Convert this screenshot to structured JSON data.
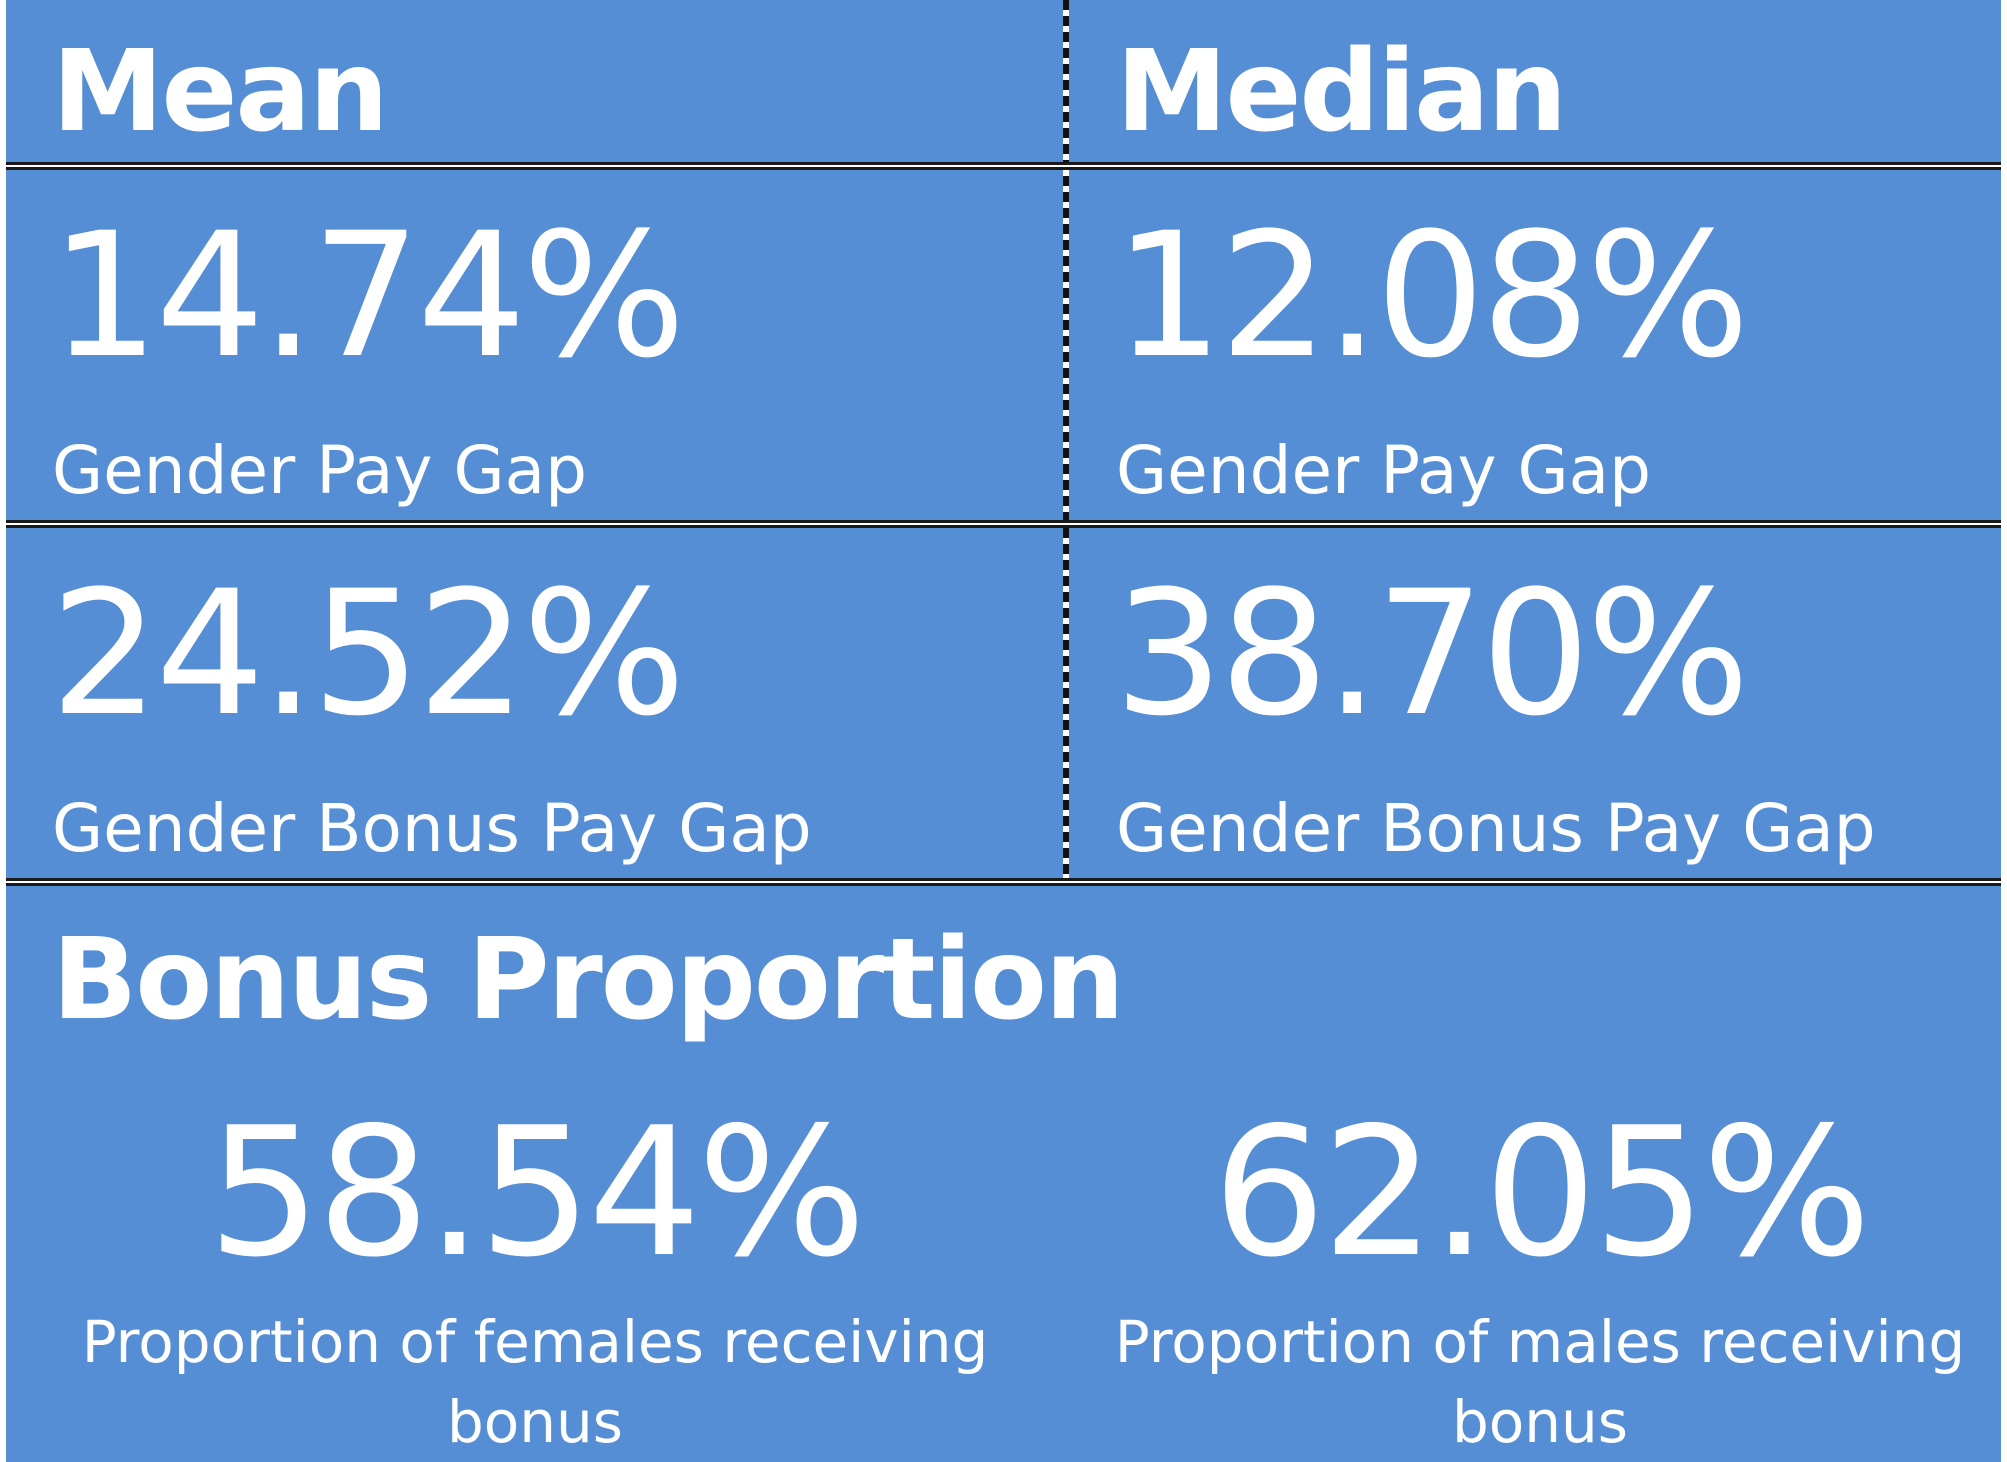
{
  "headers": {
    "mean": "Mean",
    "median": "Median"
  },
  "pay_gap": {
    "mean_value": "14.74%",
    "median_value": "12.08%",
    "label": "Gender Pay Gap"
  },
  "bonus_pay_gap": {
    "mean_value": "24.52%",
    "median_value": "38.70%",
    "label": "Gender Bonus Pay Gap"
  },
  "bonus_proportion": {
    "title": "Bonus Proportion",
    "female_value": "58.54%",
    "female_label": "Proportion of females receiving bonus",
    "male_value": "62.05%",
    "male_label": "Proportion of males receiving bonus"
  },
  "colors": {
    "background": "#558ed5",
    "text": "#ffffff",
    "rule": "#1a1a1a"
  }
}
